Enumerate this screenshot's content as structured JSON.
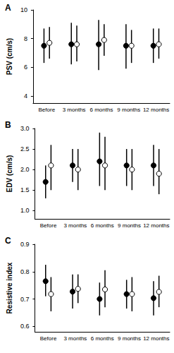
{
  "chart_data": [
    {
      "type": "scatter",
      "title": "A",
      "y_label": "PSV (cm/s)",
      "categories": [
        "Before",
        "3 months",
        "6 months",
        "9 months",
        "12 months"
      ],
      "ylim": [
        3.5,
        10
      ],
      "yticks": [
        4,
        6,
        8,
        10
      ],
      "grid": false,
      "series": [
        {
          "color": "#000000",
          "marker": "filled",
          "values": [
            7.5,
            7.6,
            7.6,
            7.5,
            7.5
          ],
          "lower": [
            6.3,
            6.2,
            5.8,
            5.9,
            6.3
          ],
          "upper": [
            8.7,
            9.1,
            9.3,
            9.0,
            8.7
          ]
        },
        {
          "color": "#000000",
          "marker": "open",
          "values": [
            7.7,
            7.6,
            7.9,
            7.5,
            7.6
          ],
          "lower": [
            6.6,
            6.4,
            6.8,
            6.3,
            6.6
          ],
          "upper": [
            8.8,
            8.9,
            9.0,
            8.6,
            8.7
          ]
        }
      ]
    },
    {
      "type": "scatter",
      "title": "B",
      "y_label": "EDV (cm/s)",
      "categories": [
        "Before",
        "3 months",
        "6 months",
        "9 months",
        "12 months"
      ],
      "ylim": [
        0.8,
        3.0
      ],
      "yticks": [
        {
          "value": 1,
          "label": "1.0"
        },
        {
          "value": 1.5,
          "label": "1.5"
        },
        {
          "value": 2,
          "label": "2.0"
        },
        {
          "value": 2.5,
          "label": "2.5"
        },
        {
          "value": 3,
          "label": "3.0"
        }
      ],
      "grid": false,
      "series": [
        {
          "color": "#000000",
          "marker": "filled",
          "values": [
            1.7,
            2.1,
            2.2,
            2.1,
            2.1
          ],
          "lower": [
            1.3,
            1.7,
            1.6,
            1.6,
            1.6
          ],
          "upper": [
            2.1,
            2.5,
            2.9,
            2.5,
            2.6
          ]
        },
        {
          "color": "#000000",
          "marker": "open",
          "values": [
            2.1,
            2.0,
            2.1,
            2.0,
            1.9
          ],
          "lower": [
            1.5,
            1.5,
            1.5,
            1.5,
            1.4
          ],
          "upper": [
            2.6,
            2.5,
            2.8,
            2.5,
            2.5
          ]
        }
      ]
    },
    {
      "type": "scatter",
      "title": "C",
      "y_label": "Resistive index",
      "categories": [
        "Before",
        "3 months",
        "6 months",
        "9 months",
        "12 months"
      ],
      "ylim": [
        0.58,
        0.9
      ],
      "yticks": [
        0.6,
        0.7,
        0.8,
        0.9
      ],
      "grid": false,
      "series": [
        {
          "color": "#000000",
          "marker": "filled",
          "values": [
            0.765,
            0.727,
            0.7,
            0.718,
            0.703
          ],
          "lower": [
            0.71,
            0.665,
            0.64,
            0.665,
            0.64
          ],
          "upper": [
            0.825,
            0.79,
            0.76,
            0.77,
            0.765
          ]
        },
        {
          "color": "#000000",
          "marker": "open",
          "values": [
            0.718,
            0.737,
            0.735,
            0.718,
            0.726
          ],
          "lower": [
            0.655,
            0.685,
            0.67,
            0.655,
            0.67
          ],
          "upper": [
            0.78,
            0.79,
            0.805,
            0.78,
            0.785
          ]
        }
      ]
    }
  ]
}
